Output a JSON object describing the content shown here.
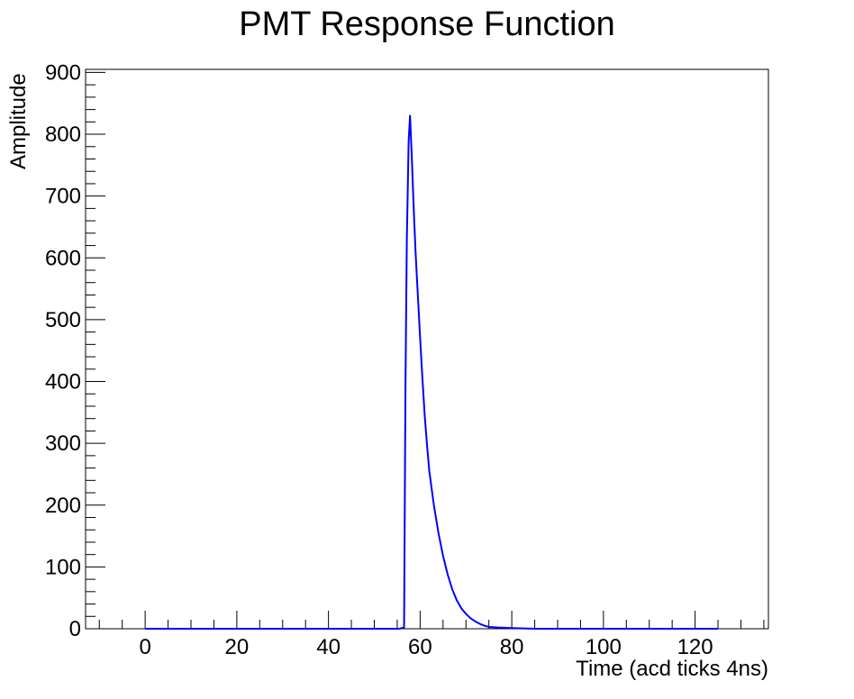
{
  "chart_data": {
    "type": "line",
    "title": "PMT Response Function",
    "xlabel": "Time (acd ticks 4ns)",
    "ylabel": "Amplitude",
    "xlim": [
      -13,
      136
    ],
    "ylim": [
      0,
      905
    ],
    "x_ticks": [
      0,
      20,
      40,
      60,
      80,
      100,
      120
    ],
    "y_ticks": [
      0,
      100,
      200,
      300,
      400,
      500,
      600,
      700,
      800,
      900
    ],
    "grid": false,
    "series": [
      {
        "color": "#0000ff",
        "points": [
          [
            0,
            0
          ],
          [
            20,
            0
          ],
          [
            40,
            0
          ],
          [
            55.5,
            0
          ],
          [
            56.5,
            2
          ],
          [
            56.8,
            390
          ],
          [
            57.1,
            630
          ],
          [
            57.5,
            790
          ],
          [
            57.8,
            830
          ],
          [
            58.2,
            760
          ],
          [
            58.6,
            680
          ],
          [
            59,
            610
          ],
          [
            59.5,
            540
          ],
          [
            60,
            470
          ],
          [
            60.5,
            405
          ],
          [
            61,
            345
          ],
          [
            61.5,
            298
          ],
          [
            62,
            255
          ],
          [
            63,
            200
          ],
          [
            64,
            155
          ],
          [
            65,
            118
          ],
          [
            66,
            88
          ],
          [
            67,
            64
          ],
          [
            68,
            46
          ],
          [
            69,
            33
          ],
          [
            70,
            24
          ],
          [
            71,
            17
          ],
          [
            72,
            12
          ],
          [
            73,
            8
          ],
          [
            74,
            5
          ],
          [
            75,
            3
          ],
          [
            77,
            2
          ],
          [
            80,
            1
          ],
          [
            85,
            0
          ],
          [
            100,
            0
          ],
          [
            125,
            0
          ]
        ]
      }
    ]
  }
}
